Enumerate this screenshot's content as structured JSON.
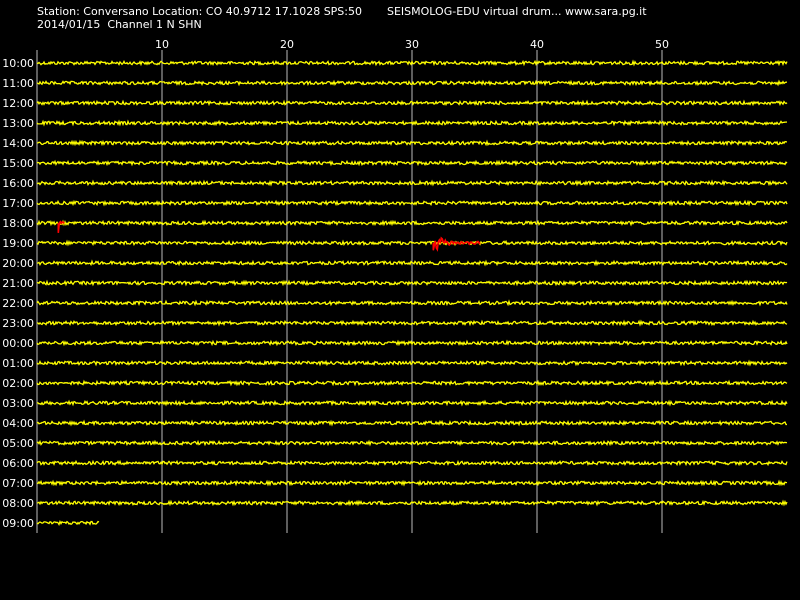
{
  "header": {
    "station_line": "Station: Conversano Location: CO 40.9712 17.1028 SPS:50",
    "date_line": "2014/01/15  Channel 1 N SHN",
    "title": "SEISMOLOG-EDU virtual drum... www.sara.pg.it"
  },
  "drum": {
    "minute_ticks": [
      "10",
      "20",
      "30",
      "40",
      "50"
    ],
    "hours": [
      "10:00",
      "11:00",
      "12:00",
      "13:00",
      "14:00",
      "15:00",
      "16:00",
      "17:00",
      "18:00",
      "19:00",
      "20:00",
      "21:00",
      "22:00",
      "23:00",
      "00:00",
      "01:00",
      "02:00",
      "03:00",
      "04:00",
      "05:00",
      "06:00",
      "07:00",
      "08:00",
      "09:00"
    ],
    "last_row_minutes": 5,
    "events": [
      {
        "hour": "18:00",
        "start_minute": 1.7,
        "end_minute": 2.2
      },
      {
        "hour": "19:00",
        "start_minute": 31.7,
        "end_minute": 35.5
      }
    ],
    "colors": {
      "background": "#000000",
      "trace": "#ffff00",
      "event": "#ff0000",
      "grid": "#bdbdbd",
      "text": "#ffffff"
    }
  }
}
